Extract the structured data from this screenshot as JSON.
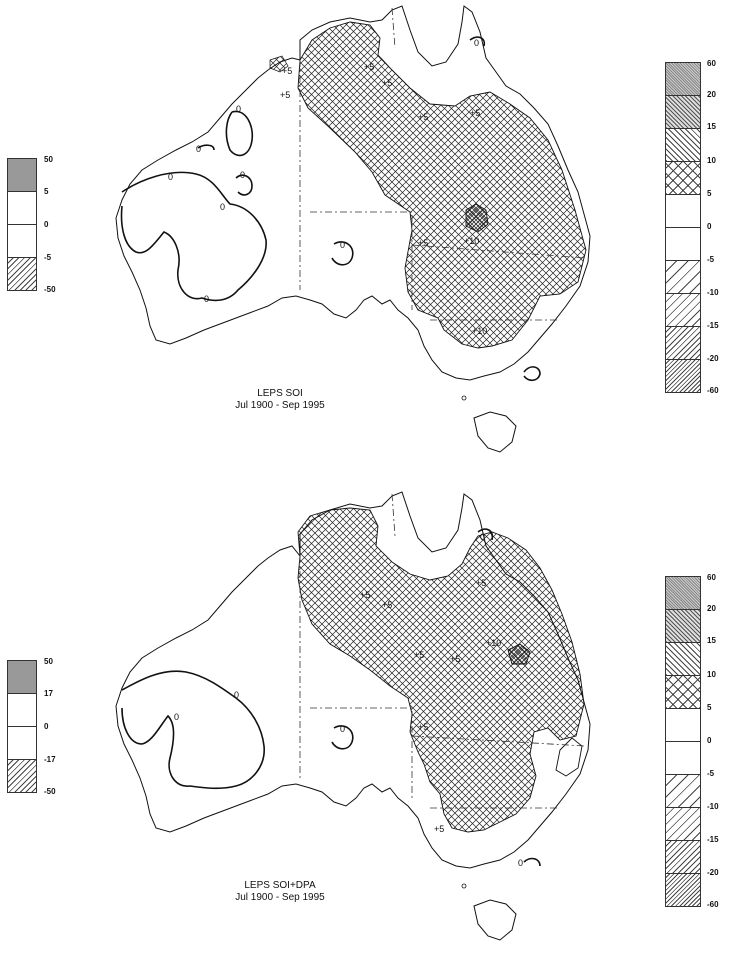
{
  "panels": [
    {
      "title": "LEPS  SOI",
      "period": "Jul 1900 - Sep 1995",
      "left_legend": [
        "50",
        "5",
        "0",
        "-5",
        "-50"
      ],
      "right_legend": [
        "60",
        "20",
        "15",
        "10",
        "5",
        "0",
        "-5",
        "-10",
        "-15",
        "-20",
        "-60"
      ],
      "contour_labels": [
        "0",
        "0",
        "0",
        "0",
        "0",
        "0",
        "0",
        "0",
        "+5",
        "+5",
        "+5",
        "+5",
        "+5",
        "+5",
        "+5",
        "+10"
      ]
    },
    {
      "title": "LEPS  SOI+DPA",
      "period": "Jul 1900 - Sep 1995",
      "left_legend": [
        "50",
        "17",
        "0",
        "-17",
        "-50"
      ],
      "right_legend": [
        "60",
        "20",
        "15",
        "10",
        "5",
        "0",
        "-5",
        "-10",
        "-15",
        "-20",
        "-60"
      ],
      "contour_labels": [
        "0",
        "0",
        "0",
        "0",
        "0",
        "+5",
        "+5",
        "+5",
        "+5",
        "+5",
        "+5",
        "+10",
        "+5"
      ]
    }
  ]
}
